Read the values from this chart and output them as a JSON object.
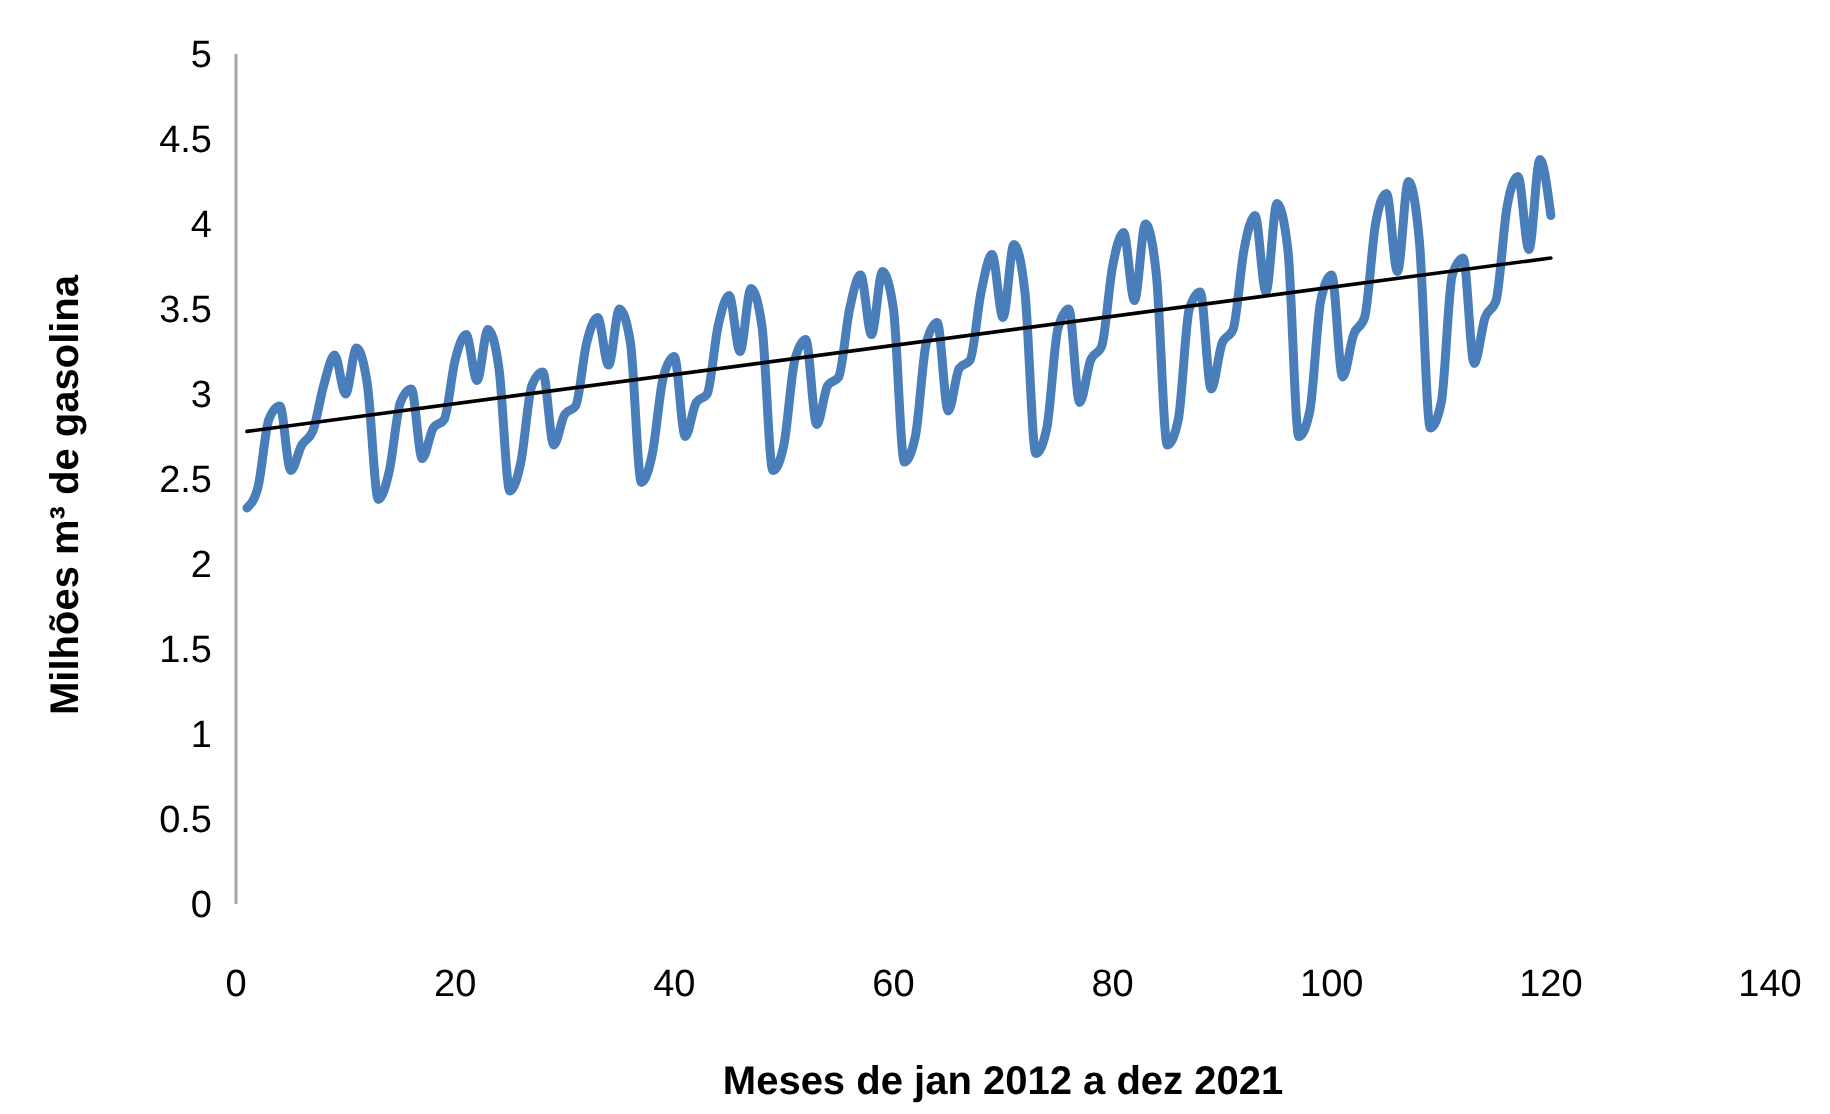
{
  "chart_data": {
    "type": "line",
    "xlabel": "Meses de jan 2012 a dez 2021",
    "ylabel": "Milhões m³ de gasolina",
    "xlim": [
      0,
      140
    ],
    "xticks": [
      0,
      20,
      40,
      60,
      80,
      100,
      120,
      140
    ],
    "ylim": [
      0,
      5
    ],
    "yticks": [
      0,
      0.5,
      1,
      1.5,
      2,
      2.5,
      3,
      3.5,
      4,
      4.5,
      5
    ],
    "grid": false,
    "marker": "none",
    "line_style": "solid",
    "x": [
      1,
      2,
      3,
      4,
      5,
      6,
      7,
      8,
      9,
      10,
      11,
      12,
      13,
      14,
      15,
      16,
      17,
      18,
      19,
      20,
      21,
      22,
      23,
      24,
      25,
      26,
      27,
      28,
      29,
      30,
      31,
      32,
      33,
      34,
      35,
      36,
      37,
      38,
      39,
      40,
      41,
      42,
      43,
      44,
      45,
      46,
      47,
      48,
      49,
      50,
      51,
      52,
      53,
      54,
      55,
      56,
      57,
      58,
      59,
      60,
      61,
      62,
      63,
      64,
      65,
      66,
      67,
      68,
      69,
      70,
      71,
      72,
      73,
      74,
      75,
      76,
      77,
      78,
      79,
      80,
      81,
      82,
      83,
      84,
      85,
      86,
      87,
      88,
      89,
      90,
      91,
      92,
      93,
      94,
      95,
      96,
      97,
      98,
      99,
      100,
      101,
      102,
      103,
      104,
      105,
      106,
      107,
      108,
      109,
      110,
      111,
      112,
      113,
      114,
      115,
      116,
      117,
      118,
      119,
      120
    ],
    "series": [
      {
        "color": "#4a7ebb",
        "values": [
          2.33,
          2.45,
          2.85,
          2.93,
          2.55,
          2.7,
          2.78,
          3.05,
          3.23,
          3.0,
          3.27,
          3.05,
          2.38,
          2.55,
          2.95,
          3.03,
          2.62,
          2.8,
          2.85,
          3.2,
          3.35,
          3.08,
          3.38,
          3.15,
          2.43,
          2.6,
          3.05,
          3.13,
          2.7,
          2.88,
          2.93,
          3.3,
          3.45,
          3.17,
          3.5,
          3.3,
          2.48,
          2.65,
          3.1,
          3.22,
          2.75,
          2.95,
          3.0,
          3.4,
          3.58,
          3.25,
          3.62,
          3.4,
          2.55,
          2.7,
          3.2,
          3.32,
          2.82,
          3.05,
          3.1,
          3.5,
          3.7,
          3.35,
          3.72,
          3.5,
          2.6,
          2.75,
          3.3,
          3.42,
          2.9,
          3.15,
          3.2,
          3.6,
          3.82,
          3.45,
          3.88,
          3.6,
          2.65,
          2.8,
          3.38,
          3.5,
          2.95,
          3.2,
          3.28,
          3.75,
          3.95,
          3.55,
          4.0,
          3.7,
          2.7,
          2.85,
          3.5,
          3.6,
          3.03,
          3.3,
          3.38,
          3.85,
          4.05,
          3.6,
          4.12,
          3.85,
          2.75,
          2.9,
          3.55,
          3.7,
          3.1,
          3.35,
          3.45,
          4.0,
          4.18,
          3.72,
          4.25,
          3.9,
          2.8,
          2.95,
          3.7,
          3.8,
          3.18,
          3.45,
          3.55,
          4.1,
          4.28,
          3.85,
          4.38,
          4.05
        ]
      },
      {
        "type": "line",
        "color": "#000000",
        "x": [
          1,
          120
        ],
        "values": [
          2.78,
          3.8
        ]
      }
    ]
  }
}
